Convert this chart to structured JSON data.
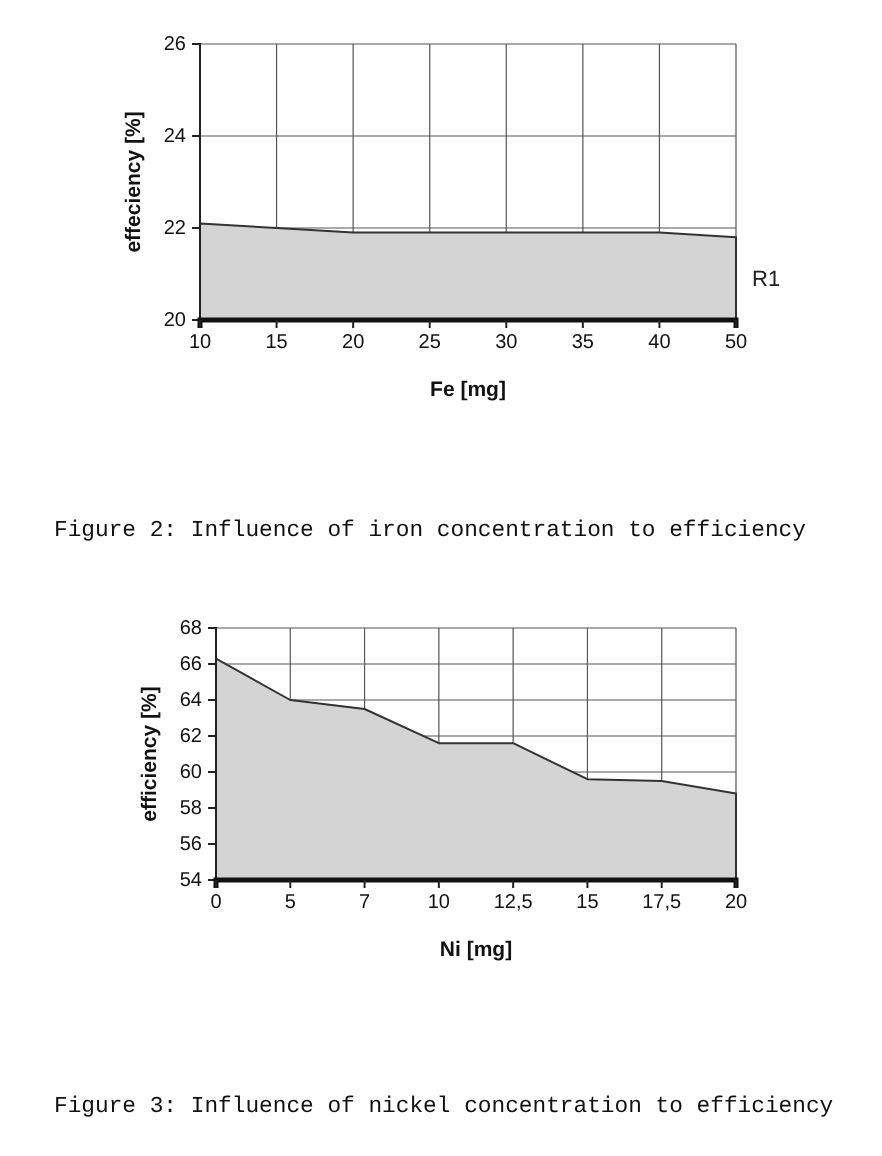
{
  "chart_data": [
    {
      "type": "area",
      "categories": [
        "10",
        "15",
        "20",
        "25",
        "30",
        "35",
        "40",
        "50"
      ],
      "series": [
        {
          "name": "R1",
          "color": "#d4d4d4",
          "values": [
            22.1,
            22.0,
            21.9,
            21.9,
            21.9,
            21.9,
            21.9,
            21.8
          ]
        }
      ],
      "xlabel": "Fe [mg]",
      "ylabel": "effeciency [%]",
      "ylim": [
        20,
        26
      ],
      "yticks": [
        20,
        22,
        24,
        26
      ],
      "grid": true,
      "annotations": [
        "Figure 2: Influence of iron concentration to efficiency"
      ]
    },
    {
      "type": "area",
      "categories": [
        "0",
        "5",
        "7",
        "10",
        "12,5",
        "15",
        "17,5",
        "20"
      ],
      "series": [
        {
          "color": "#d4d4d4",
          "values": [
            66.3,
            64.0,
            63.5,
            61.6,
            61.6,
            59.6,
            59.5,
            58.8
          ]
        }
      ],
      "xlabel": "Ni [mg]",
      "ylabel": "efficiency [%]",
      "ylim": [
        54,
        68
      ],
      "yticks": [
        54,
        56,
        58,
        60,
        62,
        64,
        66,
        68
      ],
      "grid": true,
      "annotations": [
        "Figure 3: Influence of nickel concentration to efficiency"
      ]
    }
  ]
}
